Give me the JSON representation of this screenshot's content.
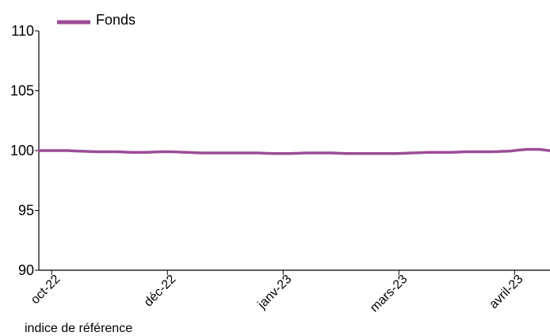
{
  "caption": "indice de référence",
  "colors": {
    "series": "#9b4d96",
    "axis": "#000000",
    "background": "#ffffff"
  },
  "chart_data": {
    "type": "line",
    "title": "",
    "xlabel": "",
    "ylabel": "",
    "ylim": [
      90,
      110
    ],
    "y_ticks": [
      90,
      95,
      100,
      105,
      110
    ],
    "x_tick_labels": [
      "oct-22",
      "déc-22",
      "janv-23",
      "mars-23",
      "avril-23"
    ],
    "grid": false,
    "legend_position": "top-left",
    "x_axis_type": "time",
    "x_tick_indices": [
      4,
      40,
      76,
      112,
      148
    ],
    "series": [
      {
        "name": "Fonds",
        "color": "#9b4d96",
        "values": [
          100.0,
          100.0,
          100.0,
          100.0,
          100.0,
          100.0,
          100.0,
          100.0,
          100.0,
          100.0,
          99.98,
          99.97,
          99.96,
          99.95,
          99.94,
          99.93,
          99.92,
          99.91,
          99.9,
          99.9,
          99.9,
          99.9,
          99.9,
          99.9,
          99.9,
          99.89,
          99.88,
          99.87,
          99.86,
          99.85,
          99.85,
          99.85,
          99.85,
          99.85,
          99.86,
          99.87,
          99.88,
          99.89,
          99.9,
          99.9,
          99.9,
          99.9,
          99.89,
          99.88,
          99.87,
          99.86,
          99.85,
          99.84,
          99.83,
          99.82,
          99.81,
          99.8,
          99.8,
          99.8,
          99.8,
          99.8,
          99.8,
          99.8,
          99.8,
          99.8,
          99.8,
          99.8,
          99.8,
          99.8,
          99.8,
          99.8,
          99.8,
          99.8,
          99.8,
          99.79,
          99.78,
          99.77,
          99.76,
          99.75,
          99.75,
          99.75,
          99.75,
          99.75,
          99.75,
          99.76,
          99.77,
          99.78,
          99.79,
          99.8,
          99.8,
          99.8,
          99.8,
          99.8,
          99.8,
          99.8,
          99.8,
          99.8,
          99.79,
          99.78,
          99.77,
          99.76,
          99.75,
          99.75,
          99.75,
          99.75,
          99.75,
          99.75,
          99.75,
          99.75,
          99.75,
          99.75,
          99.75,
          99.75,
          99.75,
          99.75,
          99.75,
          99.75,
          99.76,
          99.77,
          99.78,
          99.79,
          99.8,
          99.81,
          99.82,
          99.83,
          99.84,
          99.85,
          99.85,
          99.85,
          99.85,
          99.85,
          99.85,
          99.85,
          99.85,
          99.86,
          99.87,
          99.88,
          99.89,
          99.9,
          99.9,
          99.9,
          99.9,
          99.9,
          99.9,
          99.9,
          99.9,
          99.9,
          99.91,
          99.92,
          99.93,
          99.94,
          99.95,
          99.97,
          100.0,
          100.03,
          100.06,
          100.08,
          100.1,
          100.1,
          100.1,
          100.1,
          100.09,
          100.06,
          100.02,
          100.0
        ]
      }
    ]
  }
}
